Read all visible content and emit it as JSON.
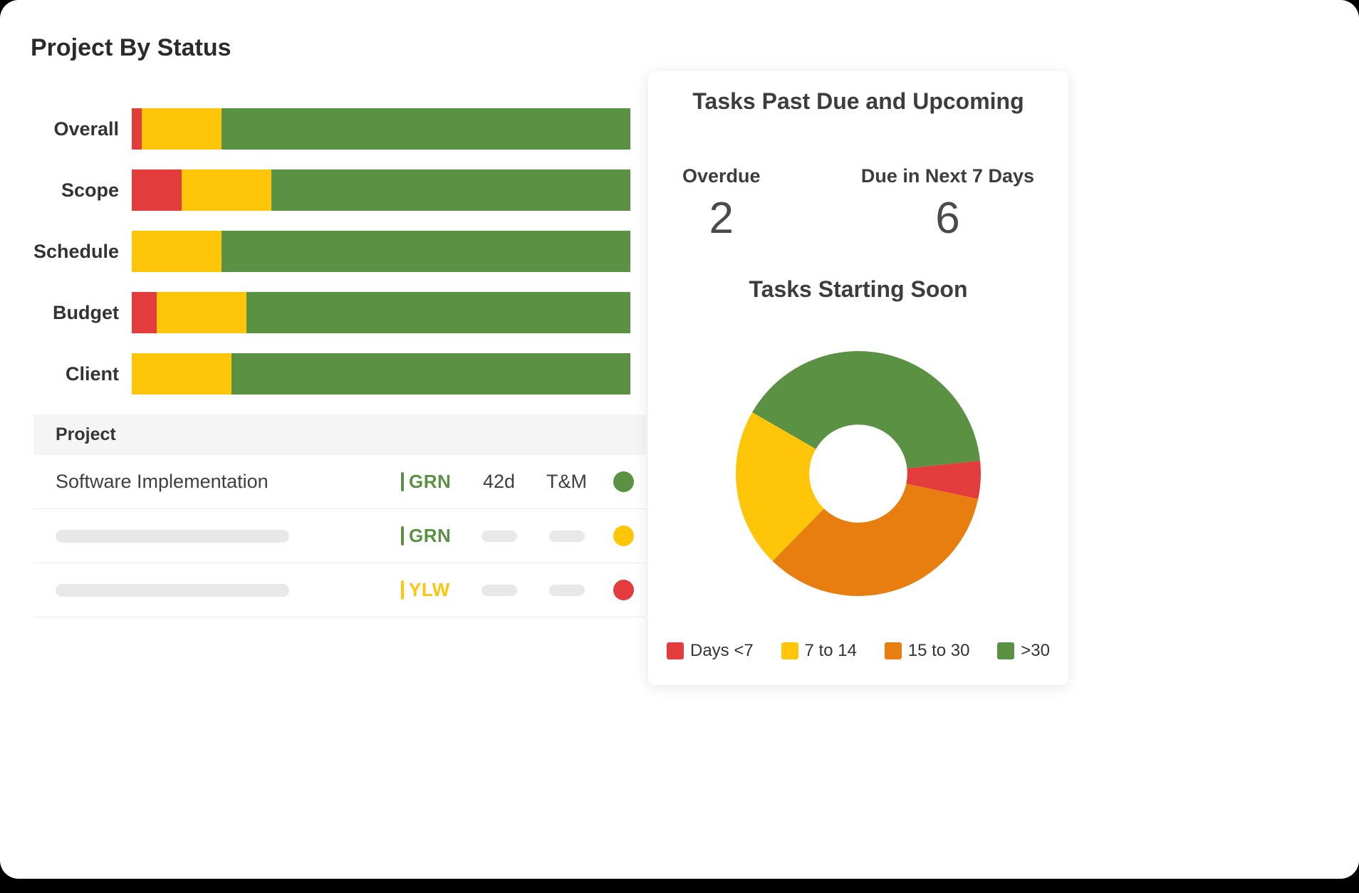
{
  "page_title": "Project By Status",
  "colors": {
    "red": "#E23C3C",
    "yellow": "#FFC609",
    "orange": "#E87E10",
    "green": "#5B9143",
    "skeleton_gray": "#E8E8E8",
    "table_header_bg": "#F5F5F5"
  },
  "chart_data": [
    {
      "type": "bar",
      "orientation": "horizontal",
      "stacked": true,
      "title": "Project By Status",
      "categories": [
        "Overall",
        "Scope",
        "Schedule",
        "Budget",
        "Client"
      ],
      "series": [
        {
          "name": "red",
          "color": "#E23C3C",
          "values": [
            2,
            10,
            0,
            5,
            0
          ]
        },
        {
          "name": "yellow",
          "color": "#FFC609",
          "values": [
            16,
            18,
            18,
            18,
            20
          ]
        },
        {
          "name": "green",
          "color": "#5B9143",
          "values": [
            82,
            72,
            82,
            77,
            80
          ]
        }
      ],
      "xlim": [
        0,
        100
      ],
      "unit": "percent",
      "grid": false,
      "legend_position": "none"
    },
    {
      "type": "pie",
      "subtype": "donut",
      "title": "Tasks Starting Soon",
      "labels": [
        "Days <7",
        "7 to 14",
        "15 to 30",
        ">30"
      ],
      "values": [
        5,
        21,
        34,
        40
      ],
      "colors": [
        "#E23C3C",
        "#FFC609",
        "#E87E10",
        "#5B9143"
      ],
      "clockwise_order": [
        ">30",
        "Days <7",
        "15 to 30",
        "7 to 14"
      ],
      "start_angle_deg": 300,
      "hole_ratio": 0.4,
      "legend_position": "bottom"
    }
  ],
  "project_table": {
    "header": "Project",
    "rows": [
      {
        "name": "Software Implementation",
        "status_label": "GRN",
        "status_color": "#5B9143",
        "duration": "42d",
        "billing_type": "T&M",
        "dot_color": "#5B9143",
        "skeleton": false
      },
      {
        "name": "",
        "status_label": "GRN",
        "status_color": "#5B9143",
        "duration": "",
        "billing_type": "",
        "dot_color": "#FFC609",
        "skeleton": true
      },
      {
        "name": "",
        "status_label": "YLW",
        "status_color": "#FFC609",
        "duration": "",
        "billing_type": "",
        "dot_color": "#E23C3C",
        "skeleton": true
      }
    ]
  },
  "tasks_card": {
    "title": "Tasks Past Due and Upcoming",
    "stats": [
      {
        "label": "Overdue",
        "value": "2"
      },
      {
        "label": "Due in Next 7 Days",
        "value": "6"
      }
    ],
    "donut_title": "Tasks Starting Soon",
    "legend": [
      {
        "label": "Days <7",
        "color": "#E23C3C"
      },
      {
        "label": "7 to 14",
        "color": "#FFC609"
      },
      {
        "label": "15 to 30",
        "color": "#E87E10"
      },
      {
        "label": ">30",
        "color": "#5B9143"
      }
    ]
  }
}
